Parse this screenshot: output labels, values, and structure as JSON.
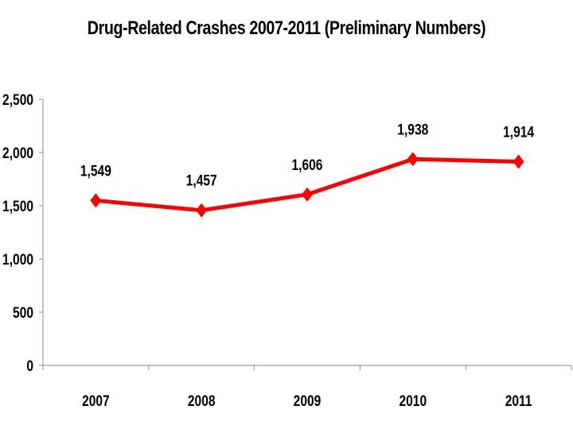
{
  "chart_data": {
    "type": "line",
    "title": "Drug-Related Crashes 2007-2011 (Preliminary Numbers)",
    "xlabel": "",
    "ylabel": "",
    "categories": [
      "2007",
      "2008",
      "2009",
      "2010",
      "2011"
    ],
    "series": [
      {
        "values": [
          1549,
          1457,
          1606,
          1938,
          1914
        ],
        "color": "#ff0000",
        "marker": "diamond"
      }
    ],
    "data_labels": [
      "1,549",
      "1,457",
      "1,606",
      "1,938",
      "1,914"
    ],
    "ylim": [
      0,
      2500
    ],
    "yticks": [
      0,
      500,
      1000,
      1500,
      2000,
      2500
    ],
    "ytick_labels": [
      "0",
      "500",
      "1,000",
      "1,500",
      "2,000",
      "2,500"
    ],
    "grid": false,
    "legend": "none"
  }
}
